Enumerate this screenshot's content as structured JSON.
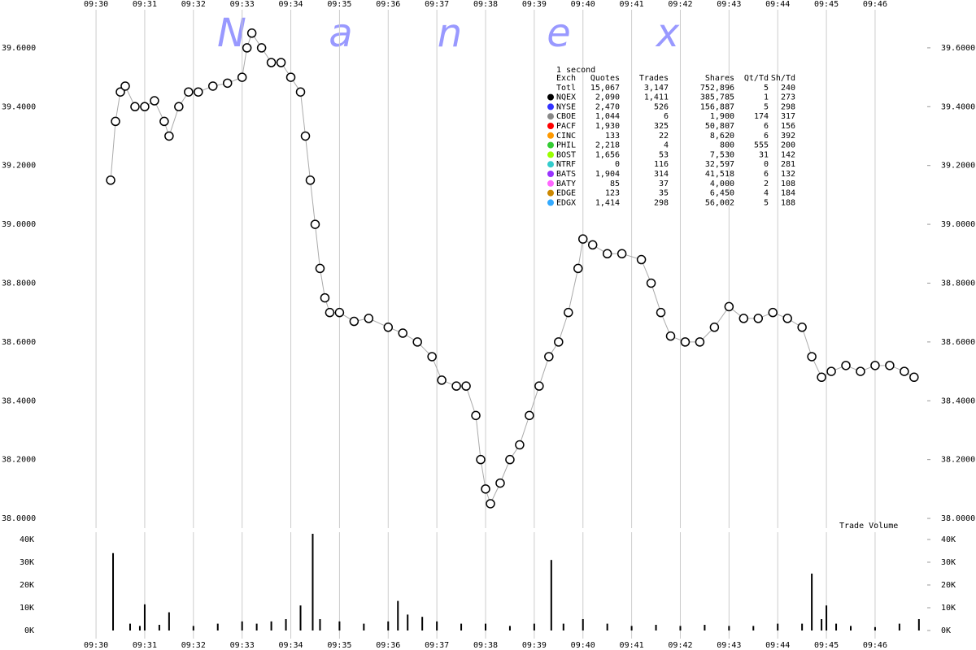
{
  "chart_data": [
    {
      "type": "line",
      "color": "#000000",
      "marker_fill": "#ffffff",
      "grid": true,
      "xlim": [
        -0.97,
        17.07
      ],
      "ylim": [
        37.967,
        39.713
      ],
      "xticks": [
        {
          "value": 0,
          "label": "09:30"
        },
        {
          "value": 1,
          "label": "09:31"
        },
        {
          "value": 2,
          "label": "09:32"
        },
        {
          "value": 3,
          "label": "09:33"
        },
        {
          "value": 4,
          "label": "09:34"
        },
        {
          "value": 5,
          "label": "09:35"
        },
        {
          "value": 6,
          "label": "09:36"
        },
        {
          "value": 7,
          "label": "09:37"
        },
        {
          "value": 8,
          "label": "09:38"
        },
        {
          "value": 9,
          "label": "09:39"
        },
        {
          "value": 10,
          "label": "09:40"
        },
        {
          "value": 11,
          "label": "09:41"
        },
        {
          "value": 12,
          "label": "09:42"
        },
        {
          "value": 13,
          "label": "09:43"
        },
        {
          "value": 14,
          "label": "09:44"
        },
        {
          "value": 15,
          "label": "09:45"
        },
        {
          "value": 16,
          "label": "09:46"
        }
      ],
      "yticks": [
        {
          "value": 38.0,
          "label": "38.0000"
        },
        {
          "value": 38.2,
          "label": "38.2000"
        },
        {
          "value": 38.4,
          "label": "38.4000"
        },
        {
          "value": 38.6,
          "label": "38.6000"
        },
        {
          "value": 38.8,
          "label": "38.8000"
        },
        {
          "value": 39.0,
          "label": "39.0000"
        },
        {
          "value": 39.2,
          "label": "39.2000"
        },
        {
          "value": 39.4,
          "label": "39.4000"
        },
        {
          "value": 39.6,
          "label": "39.6000"
        }
      ],
      "x": [
        0.3,
        0.4,
        0.5,
        0.6,
        0.8,
        1.0,
        1.2,
        1.4,
        1.5,
        1.7,
        1.9,
        2.1,
        2.4,
        2.7,
        3.0,
        3.1,
        3.2,
        3.4,
        3.6,
        3.8,
        4.0,
        4.2,
        4.3,
        4.4,
        4.5,
        4.6,
        4.7,
        4.8,
        5.0,
        5.3,
        5.6,
        6.0,
        6.3,
        6.6,
        6.9,
        7.1,
        7.4,
        7.6,
        7.8,
        7.9,
        8.0,
        8.1,
        8.3,
        8.5,
        8.7,
        8.9,
        9.1,
        9.3,
        9.5,
        9.7,
        9.9,
        10.0,
        10.2,
        10.5,
        10.8,
        11.2,
        11.4,
        11.6,
        11.8,
        12.1,
        12.4,
        12.7,
        13.0,
        13.3,
        13.6,
        13.9,
        14.2,
        14.5,
        14.7,
        14.9,
        15.1,
        15.4,
        15.7,
        16.0,
        16.3,
        16.6,
        16.8
      ],
      "values": [
        39.15,
        39.35,
        39.45,
        39.47,
        39.4,
        39.4,
        39.42,
        39.35,
        39.3,
        39.4,
        39.45,
        39.45,
        39.47,
        39.48,
        39.5,
        39.6,
        39.65,
        39.6,
        39.55,
        39.55,
        39.5,
        39.45,
        39.3,
        39.15,
        39.0,
        38.85,
        38.75,
        38.7,
        38.7,
        38.67,
        38.68,
        38.65,
        38.63,
        38.6,
        38.55,
        38.47,
        38.45,
        38.45,
        38.35,
        38.2,
        38.1,
        38.05,
        38.12,
        38.2,
        38.25,
        38.35,
        38.45,
        38.55,
        38.6,
        38.7,
        38.85,
        38.95,
        38.93,
        38.9,
        38.9,
        38.88,
        38.8,
        38.7,
        38.62,
        38.6,
        38.6,
        38.65,
        38.72,
        38.68,
        38.68,
        38.7,
        38.68,
        38.65,
        38.55,
        38.48,
        38.5,
        38.52,
        38.5,
        38.52,
        38.52,
        38.5,
        38.48
      ]
    },
    {
      "type": "bar",
      "title": "Trade Volume",
      "color": "#000000",
      "grid": true,
      "xlim": [
        -0.97,
        17.07
      ],
      "ylim": [
        0,
        43200
      ],
      "xticks": [
        {
          "value": 0,
          "label": "09:30"
        },
        {
          "value": 1,
          "label": "09:31"
        },
        {
          "value": 2,
          "label": "09:32"
        },
        {
          "value": 3,
          "label": "09:33"
        },
        {
          "value": 4,
          "label": "09:34"
        },
        {
          "value": 5,
          "label": "09:35"
        },
        {
          "value": 6,
          "label": "09:36"
        },
        {
          "value": 7,
          "label": "09:37"
        },
        {
          "value": 8,
          "label": "09:38"
        },
        {
          "value": 9,
          "label": "09:39"
        },
        {
          "value": 10,
          "label": "09:40"
        },
        {
          "value": 11,
          "label": "09:41"
        },
        {
          "value": 12,
          "label": "09:42"
        },
        {
          "value": 13,
          "label": "09:43"
        },
        {
          "value": 14,
          "label": "09:44"
        },
        {
          "value": 15,
          "label": "09:45"
        },
        {
          "value": 16,
          "label": "09:46"
        }
      ],
      "yticks": [
        {
          "value": 0,
          "label": "0K"
        },
        {
          "value": 10000,
          "label": "10K"
        },
        {
          "value": 20000,
          "label": "20K"
        },
        {
          "value": 30000,
          "label": "30K"
        },
        {
          "value": 40000,
          "label": "40K"
        }
      ],
      "x": [
        0.35,
        0.7,
        0.9,
        1.0,
        1.3,
        1.5,
        2.0,
        2.5,
        3.0,
        3.3,
        3.6,
        3.9,
        4.2,
        4.45,
        4.6,
        5.0,
        5.5,
        6.0,
        6.2,
        6.4,
        6.7,
        7.0,
        7.5,
        8.0,
        8.5,
        9.0,
        9.35,
        9.6,
        10.0,
        10.5,
        11.0,
        11.5,
        12.0,
        12.5,
        13.0,
        13.5,
        14.0,
        14.5,
        14.7,
        14.9,
        15.0,
        15.2,
        15.5,
        16.0,
        16.5,
        16.9
      ],
      "values": [
        34000,
        3000,
        2000,
        11500,
        2500,
        8000,
        2000,
        3000,
        4000,
        3000,
        4000,
        5000,
        11000,
        42500,
        5000,
        4000,
        3000,
        4000,
        13000,
        7000,
        6000,
        4000,
        3000,
        3000,
        2000,
        3000,
        31000,
        3000,
        5000,
        3000,
        2000,
        2500,
        2000,
        2500,
        2000,
        2000,
        3000,
        3000,
        25000,
        5000,
        11000,
        3000,
        2000,
        1500,
        3000,
        5000
      ]
    }
  ],
  "watermark": [
    "N",
    "a",
    "n",
    "e",
    "x"
  ],
  "table": {
    "title": "1 second",
    "header": [
      "Exch",
      "Quotes",
      "Trades",
      "Shares",
      "Qt/Td",
      "Sh/Td"
    ],
    "marker_colors": [
      null,
      "#000000",
      "#3333ff",
      "#888888",
      "#ff0000",
      "#ff9900",
      "#33cc33",
      "#99ff00",
      "#33cccc",
      "#9933ff",
      "#ff66ff",
      "#cc8800",
      "#33aaff"
    ],
    "rows": [
      [
        "Totl",
        "15,067",
        "3,147",
        "752,896",
        "5",
        "240"
      ],
      [
        "NQEX",
        "2,090",
        "1,411",
        "385,785",
        "1",
        "273"
      ],
      [
        "NYSE",
        "2,470",
        "526",
        "156,887",
        "5",
        "298"
      ],
      [
        "CBOE",
        "1,044",
        "6",
        "1,900",
        "174",
        "317"
      ],
      [
        "PACF",
        "1,930",
        "325",
        "50,807",
        "6",
        "156"
      ],
      [
        "CINC",
        "133",
        "22",
        "8,620",
        "6",
        "392"
      ],
      [
        "PHIL",
        "2,218",
        "4",
        "800",
        "555",
        "200"
      ],
      [
        "BOST",
        "1,656",
        "53",
        "7,530",
        "31",
        "142"
      ],
      [
        "NTRF",
        "0",
        "116",
        "32,597",
        "0",
        "281"
      ],
      [
        "BATS",
        "1,904",
        "314",
        "41,518",
        "6",
        "132"
      ],
      [
        "BATY",
        "85",
        "37",
        "4,000",
        "2",
        "108"
      ],
      [
        "EDGE",
        "123",
        "35",
        "6,450",
        "4",
        "184"
      ],
      [
        "EDGX",
        "1,414",
        "298",
        "56,002",
        "5",
        "188"
      ]
    ]
  }
}
